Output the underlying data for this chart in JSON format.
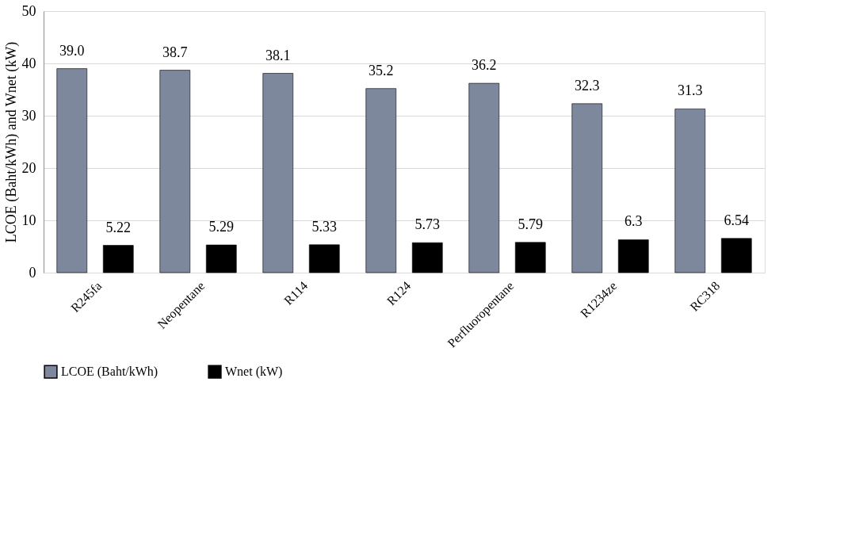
{
  "chart_data": {
    "type": "bar",
    "ylabel": "LCOE (Baht/kWh) and Wnet (kW)",
    "categories": [
      "R245fa",
      "Neopentane",
      "R114",
      "R124",
      "Perfluoropentane",
      "R1234ze",
      "RC318"
    ],
    "series": [
      {
        "name": "LCOE (Baht/kWh)",
        "color": "#7d889c",
        "values": [
          39.0,
          38.7,
          38.1,
          35.2,
          36.2,
          32.3,
          31.3
        ],
        "value_labels": [
          "39.0",
          "38.7",
          "38.1",
          "35.2",
          "36.2",
          "32.3",
          "31.3"
        ]
      },
      {
        "name": "Wnet (kW)",
        "color": "#000000",
        "values": [
          5.22,
          5.29,
          5.33,
          5.73,
          5.79,
          6.3,
          6.54
        ],
        "value_labels": [
          "5.22",
          "5.29",
          "5.33",
          "5.73",
          "5.79",
          "6.3",
          "6.54"
        ]
      }
    ],
    "ylim": [
      0,
      50
    ],
    "yticks": [
      0,
      10,
      20,
      30,
      40,
      50
    ],
    "grid": "y",
    "legend": "bottom"
  }
}
